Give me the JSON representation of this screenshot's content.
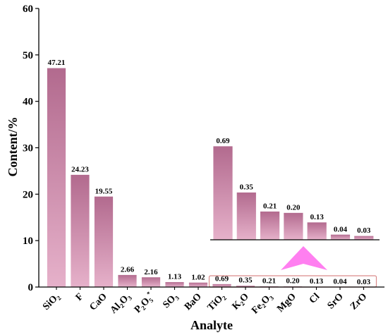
{
  "colors": {
    "bar_top": "#b26a8e",
    "bar_bottom": "#e6b1ca",
    "bar_stroke": "#ffffff",
    "axis": "#000000",
    "highlight_box": "#d98a8a",
    "arrow": "#ff7ff0"
  },
  "chart_data": {
    "type": "bar",
    "xlabel": "Analyte",
    "ylabel": "Content/%",
    "ylim": [
      0,
      60
    ],
    "yticks": [
      "0",
      "10",
      "20",
      "30",
      "40",
      "50",
      "60"
    ],
    "categories": [
      {
        "base": "SiO",
        "sub": "2",
        "tail": "",
        "sup": ""
      },
      {
        "base": "F",
        "sub": "",
        "tail": "",
        "sup": ""
      },
      {
        "base": "CaO",
        "sub": "",
        "tail": "",
        "sup": ""
      },
      {
        "base": "Al",
        "sub": "2",
        "tail": "O",
        "sub2": "3",
        "sup": ""
      },
      {
        "base": "P",
        "sub": "2",
        "tail": "O",
        "sub2": "5",
        "sup": "*"
      },
      {
        "base": "SO",
        "sub": "3",
        "tail": "",
        "sup": ""
      },
      {
        "base": "BaO",
        "sub": "",
        "tail": "",
        "sup": ""
      },
      {
        "base": "TiO",
        "sub": "2",
        "tail": "",
        "sup": ""
      },
      {
        "base": "K",
        "sub": "2",
        "tail": "O",
        "sup": ""
      },
      {
        "base": "Fe",
        "sub": "2",
        "tail": "O",
        "sub2": "3",
        "sup": ""
      },
      {
        "base": "MgO",
        "sub": "",
        "tail": "",
        "sup": ""
      },
      {
        "base": "Cl",
        "sub": "",
        "tail": "",
        "sup": ""
      },
      {
        "base": "SrO",
        "sub": "",
        "tail": "",
        "sup": ""
      },
      {
        "base": "ZrO",
        "sub": "",
        "tail": "",
        "sup": ""
      }
    ],
    "values": [
      47.21,
      24.23,
      19.55,
      2.66,
      2.16,
      1.13,
      1.02,
      0.69,
      0.35,
      0.21,
      0.2,
      0.13,
      0.04,
      0.03
    ],
    "value_labels": [
      "47.21",
      "24.23",
      "19.55",
      "2.66",
      "2.16",
      "1.13",
      "1.02",
      "0.69",
      "0.35",
      "0.21",
      "0.20",
      "0.13",
      "0.04",
      "0.03"
    ],
    "inset": {
      "type": "bar",
      "note": "magnified view of the seven smallest analytes",
      "categories_from_index": 7,
      "values": [
        0.69,
        0.35,
        0.21,
        0.2,
        0.13,
        0.04,
        0.03
      ],
      "value_labels": [
        "0.69",
        "0.35",
        "0.21",
        "0.20",
        "0.13",
        "0.04",
        "0.03"
      ]
    },
    "grid": false,
    "legend": "none"
  }
}
